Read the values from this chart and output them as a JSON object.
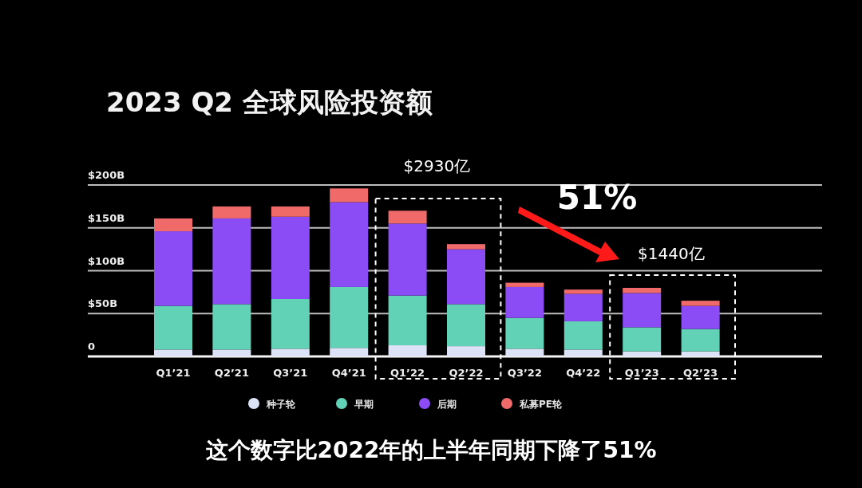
{
  "chart_data": {
    "type": "bar",
    "title": "2023 Q2 全球风险投资额",
    "stacked": true,
    "categories": [
      "Q1’21",
      "Q2’21",
      "Q3’21",
      "Q4’21",
      "Q1’22",
      "Q2’22",
      "Q3’22",
      "Q4’22",
      "Q1’23",
      "Q2’23"
    ],
    "series": [
      {
        "name": "种子轮",
        "color": "#dde3f7",
        "values": [
          8,
          8,
          9,
          10,
          13,
          12,
          9,
          8,
          6,
          6
        ]
      },
      {
        "name": "早期",
        "color": "#62d2b6",
        "values": [
          51,
          53,
          58,
          71,
          58,
          49,
          36,
          33,
          28,
          26
        ]
      },
      {
        "name": "后期",
        "color": "#8b4cf5",
        "values": [
          87,
          100,
          96,
          99,
          84,
          64,
          36,
          32,
          40,
          27
        ]
      },
      {
        "name": "私募PE轮",
        "color": "#f06a6a",
        "values": [
          15,
          14,
          12,
          16,
          15,
          6,
          5,
          5,
          6,
          6
        ]
      }
    ],
    "ylim": [
      0,
      200
    ],
    "yticks": [
      {
        "value": 0,
        "label": "0"
      },
      {
        "value": 50,
        "label": "$50B"
      },
      {
        "value": 100,
        "label": "$100B"
      },
      {
        "value": 150,
        "label": "$150B"
      },
      {
        "value": 200,
        "label": "$200B"
      }
    ],
    "grid": "y",
    "legend": "bottom",
    "marker": "circle",
    "annotations": [
      "$2930亿",
      "$1440亿",
      "51%",
      "这个数字比2022年的上半年同期下降了51%"
    ]
  }
}
